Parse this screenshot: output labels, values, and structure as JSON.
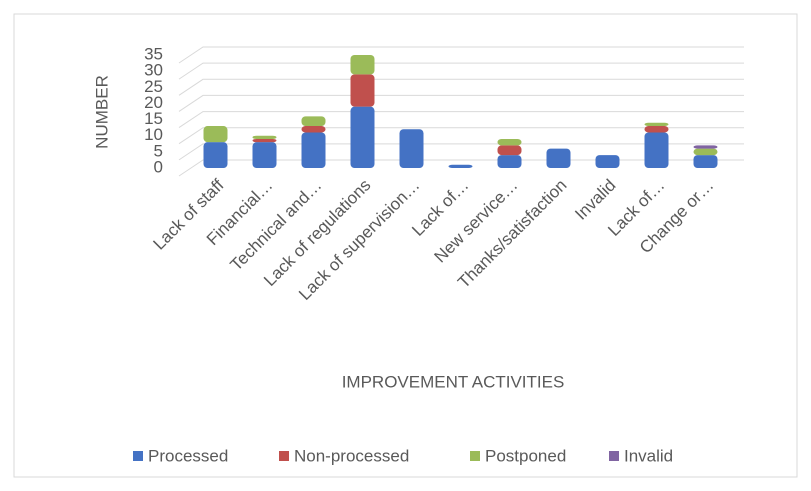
{
  "chart_data": {
    "type": "bar",
    "stacked": true,
    "x_label": "IMPROVEMENT ACTIVITIES",
    "y_label": "NUMBER",
    "categories": [
      "Lack of staff",
      "Financial…",
      "Technical and…",
      "Lack of regulations",
      "Lack of supervision…",
      "Lack of…",
      "New service…",
      "Thanks/satisfaction",
      "Invalid",
      "Lack of…",
      "Change or…"
    ],
    "series": [
      {
        "name": "Processed",
        "color": "#4472c4",
        "values": [
          8,
          8,
          11,
          19,
          12,
          1,
          4,
          6,
          4,
          11,
          4
        ]
      },
      {
        "name": "Non-processed",
        "color": "#c0504d",
        "values": [
          0,
          1,
          2,
          10,
          0,
          0,
          3,
          0,
          0,
          2,
          0
        ]
      },
      {
        "name": "Postponed",
        "color": "#9bbb59",
        "values": [
          5,
          1,
          3,
          6,
          0,
          0,
          2,
          0,
          0,
          1,
          2
        ]
      },
      {
        "name": "Invalid",
        "color": "#8064a2",
        "values": [
          0,
          0,
          0,
          0,
          0,
          0,
          0,
          0,
          0,
          0,
          1
        ]
      }
    ],
    "ylim": [
      0,
      35
    ],
    "yticks": [
      0,
      5,
      10,
      15,
      20,
      25,
      30,
      35
    ],
    "grid": true,
    "legend": "bottom"
  }
}
